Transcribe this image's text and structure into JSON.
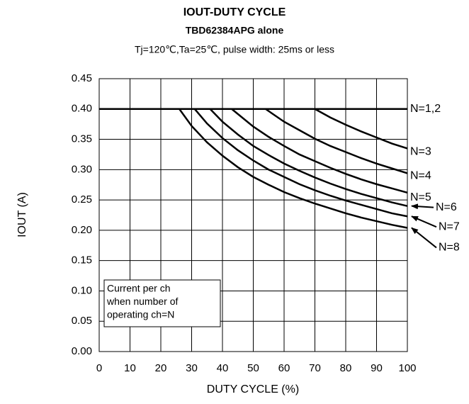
{
  "chart_data": {
    "type": "line",
    "title": "IOUT-DUTY CYCLE",
    "subtitle": "TBD62384APG alone",
    "conditions": "Tj=120℃,Ta=25℃, pulse width: 25ms or less",
    "xlabel": "DUTY CYCLE (%)",
    "ylabel": "IOUT (A)",
    "xlim": [
      0,
      100
    ],
    "ylim": [
      0,
      0.45
    ],
    "xticks": [
      0,
      10,
      20,
      30,
      40,
      50,
      60,
      70,
      80,
      90,
      100
    ],
    "yticks": [
      {
        "value": 0,
        "label": "0.00"
      },
      {
        "value": 0.05,
        "label": "0.05"
      },
      {
        "value": 0.1,
        "label": "0.10"
      },
      {
        "value": 0.15,
        "label": "0.15"
      },
      {
        "value": 0.2,
        "label": "0.20"
      },
      {
        "value": 0.25,
        "label": "0.25"
      },
      {
        "value": 0.3,
        "label": "0.30"
      },
      {
        "value": 0.35,
        "label": "0.35"
      },
      {
        "value": 0.4,
        "label": "0.40"
      },
      {
        "value": 0.45,
        "label": "0.45"
      }
    ],
    "grid": true,
    "annotation": [
      "Current per ch",
      "when number of",
      "operating ch=N"
    ],
    "series": [
      {
        "name": "N=1,2",
        "color": "#000000",
        "x": [
          0,
          100
        ],
        "values": [
          0.4,
          0.4
        ]
      },
      {
        "name": "N=3",
        "color": "#000000",
        "x": [
          70,
          75,
          80,
          85,
          90,
          95,
          100
        ],
        "values": [
          0.4,
          0.386,
          0.374,
          0.363,
          0.353,
          0.343,
          0.335
        ]
      },
      {
        "name": "N=4",
        "color": "#000000",
        "x": [
          54,
          60,
          65,
          70,
          75,
          80,
          85,
          90,
          95,
          100
        ],
        "values": [
          0.4,
          0.379,
          0.365,
          0.351,
          0.339,
          0.329,
          0.319,
          0.31,
          0.302,
          0.294
        ]
      },
      {
        "name": "N=5",
        "color": "#000000",
        "x": [
          43,
          50,
          55,
          60,
          65,
          70,
          75,
          80,
          85,
          90,
          95,
          100
        ],
        "values": [
          0.4,
          0.371,
          0.354,
          0.339,
          0.325,
          0.314,
          0.303,
          0.293,
          0.284,
          0.276,
          0.269,
          0.262
        ]
      },
      {
        "name": "N=6",
        "color": "#000000",
        "x": [
          36,
          40,
          45,
          50,
          55,
          60,
          65,
          70,
          75,
          80,
          85,
          90,
          95,
          100
        ],
        "values": [
          0.4,
          0.379,
          0.358,
          0.339,
          0.324,
          0.31,
          0.298,
          0.287,
          0.277,
          0.268,
          0.26,
          0.253,
          0.246,
          0.24
        ]
      },
      {
        "name": "N=7",
        "color": "#000000",
        "x": [
          31,
          35,
          40,
          45,
          50,
          55,
          60,
          65,
          70,
          75,
          80,
          85,
          90,
          95,
          100
        ],
        "values": [
          0.4,
          0.376,
          0.352,
          0.332,
          0.315,
          0.3,
          0.288,
          0.276,
          0.266,
          0.257,
          0.249,
          0.242,
          0.235,
          0.228,
          0.223
        ]
      },
      {
        "name": "N=8",
        "color": "#000000",
        "x": [
          26,
          30,
          35,
          40,
          45,
          50,
          55,
          60,
          65,
          70,
          75,
          80,
          85,
          90,
          95,
          100
        ],
        "values": [
          0.4,
          0.372,
          0.345,
          0.323,
          0.304,
          0.288,
          0.275,
          0.263,
          0.253,
          0.244,
          0.236,
          0.228,
          0.221,
          0.215,
          0.209,
          0.204
        ]
      }
    ]
  }
}
